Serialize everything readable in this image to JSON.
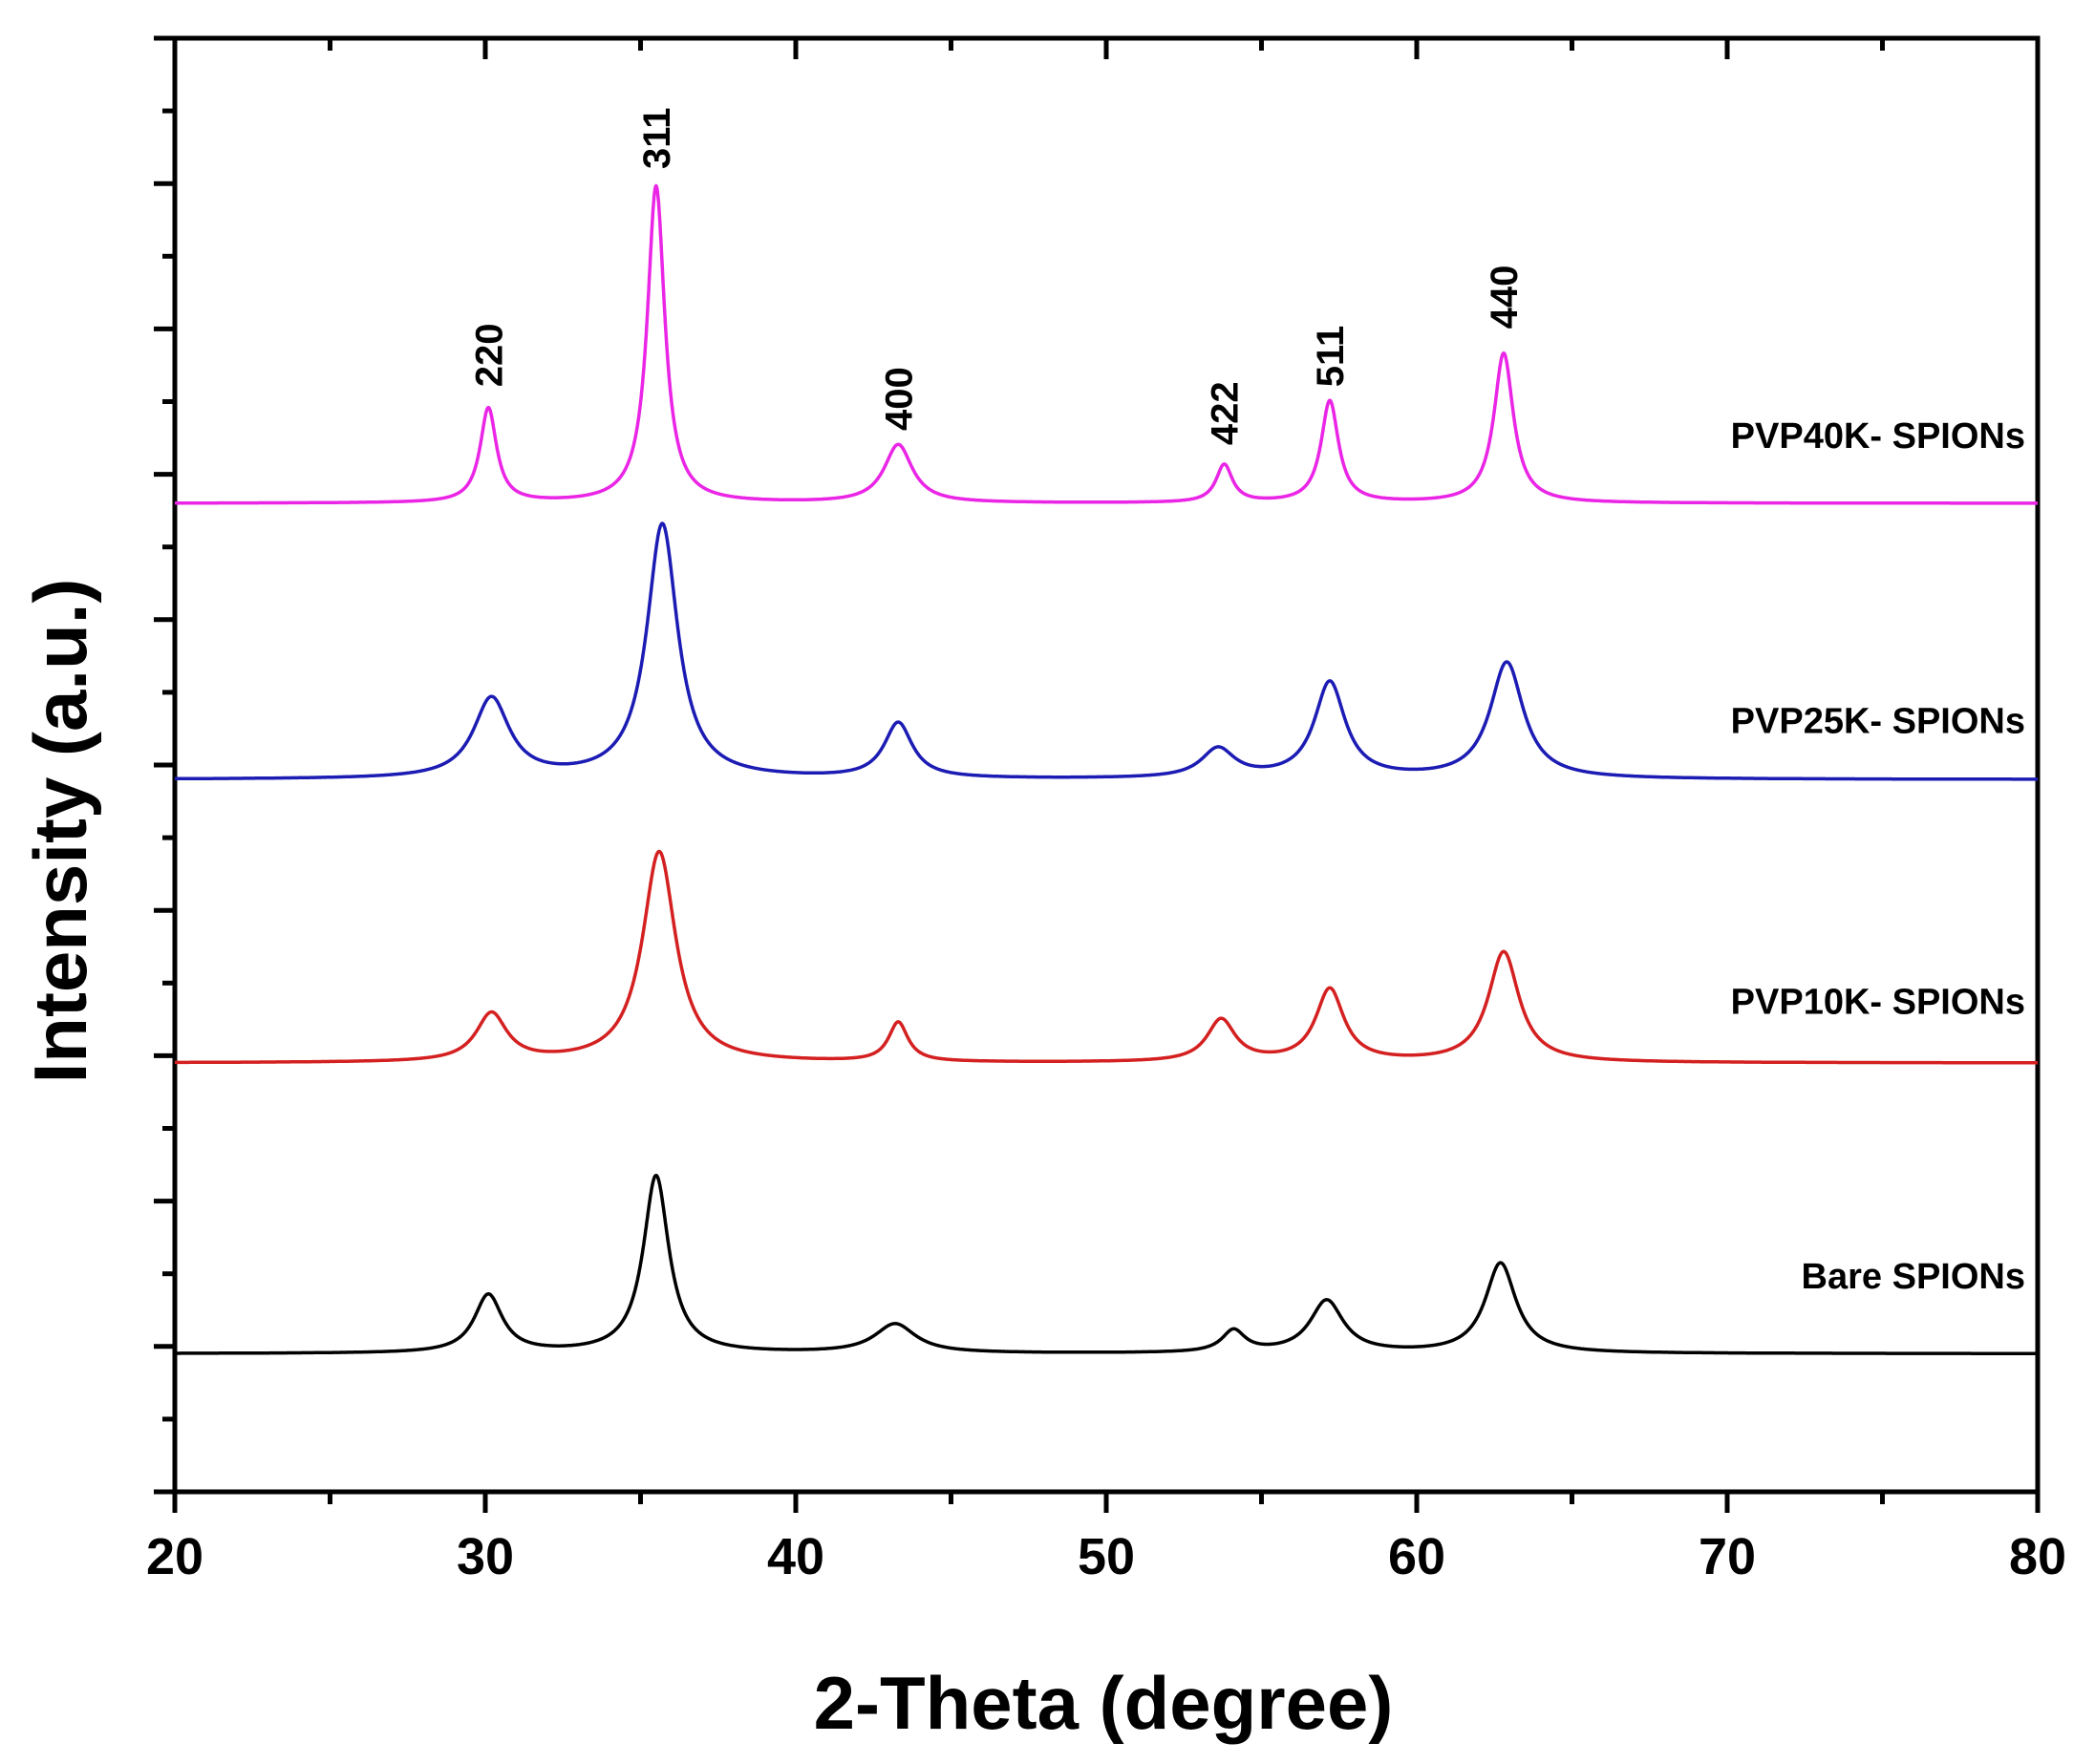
{
  "chart_data": {
    "type": "line",
    "title": "",
    "xlabel": "2-Theta (degree)",
    "ylabel": "Intensity (a.u.)",
    "xlim": [
      20,
      80
    ],
    "ylim": [
      0,
      10
    ],
    "x_ticks": [
      20,
      30,
      40,
      50,
      60,
      70,
      80
    ],
    "x_tick_labels": [
      "20",
      "30",
      "40",
      "50",
      "60",
      "70",
      "80"
    ],
    "y_tick_labels_shown": false,
    "grid": false,
    "legend": "labels placed next to each trace on the right",
    "series": [
      {
        "name": "Bare SPIONs",
        "color": "#000000",
        "baseline": 0.95,
        "peaks": [
          {
            "x": 30.1,
            "h": 0.4,
            "w": 0.55
          },
          {
            "x": 35.5,
            "h": 1.22,
            "w": 0.5
          },
          {
            "x": 43.2,
            "h": 0.2,
            "w": 0.8
          },
          {
            "x": 54.1,
            "h": 0.15,
            "w": 0.45
          },
          {
            "x": 57.1,
            "h": 0.36,
            "w": 0.65
          },
          {
            "x": 62.7,
            "h": 0.62,
            "w": 0.6
          }
        ]
      },
      {
        "name": "PVP10K- SPIONs",
        "color": "#d42020",
        "baseline": 2.95,
        "peaks": [
          {
            "x": 30.2,
            "h": 0.33,
            "w": 0.6
          },
          {
            "x": 35.6,
            "h": 1.45,
            "w": 0.65
          },
          {
            "x": 43.3,
            "h": 0.27,
            "w": 0.38
          },
          {
            "x": 53.7,
            "h": 0.29,
            "w": 0.55
          },
          {
            "x": 57.2,
            "h": 0.5,
            "w": 0.55
          },
          {
            "x": 62.8,
            "h": 0.76,
            "w": 0.6
          }
        ]
      },
      {
        "name": "PVP25K- SPIONs",
        "color": "#1c1cb4",
        "baseline": 4.9,
        "peaks": [
          {
            "x": 30.2,
            "h": 0.55,
            "w": 0.7
          },
          {
            "x": 35.7,
            "h": 1.75,
            "w": 0.6
          },
          {
            "x": 43.3,
            "h": 0.38,
            "w": 0.55
          },
          {
            "x": 53.6,
            "h": 0.2,
            "w": 0.65
          },
          {
            "x": 57.2,
            "h": 0.66,
            "w": 0.6
          },
          {
            "x": 62.9,
            "h": 0.8,
            "w": 0.65
          }
        ]
      },
      {
        "name": "PVP40K- SPIONs",
        "color": "#ea25e6",
        "baseline": 6.8,
        "peaks": [
          {
            "x": 30.1,
            "h": 0.65,
            "w": 0.32
          },
          {
            "x": 35.5,
            "h": 2.18,
            "w": 0.34
          },
          {
            "x": 43.3,
            "h": 0.4,
            "w": 0.55
          },
          {
            "x": 53.8,
            "h": 0.26,
            "w": 0.32
          },
          {
            "x": 57.2,
            "h": 0.7,
            "w": 0.34
          },
          {
            "x": 62.8,
            "h": 1.03,
            "w": 0.38
          }
        ]
      }
    ],
    "annotations": [
      {
        "text": "220",
        "x": 30.1,
        "y": 7.6
      },
      {
        "text": "311",
        "x": 35.5,
        "y": 9.1
      },
      {
        "text": "400",
        "x": 43.3,
        "y": 7.3
      },
      {
        "text": "422",
        "x": 53.8,
        "y": 7.2
      },
      {
        "text": "511",
        "x": 57.2,
        "y": 7.6
      },
      {
        "text": "440",
        "x": 62.8,
        "y": 8.0
      }
    ]
  }
}
